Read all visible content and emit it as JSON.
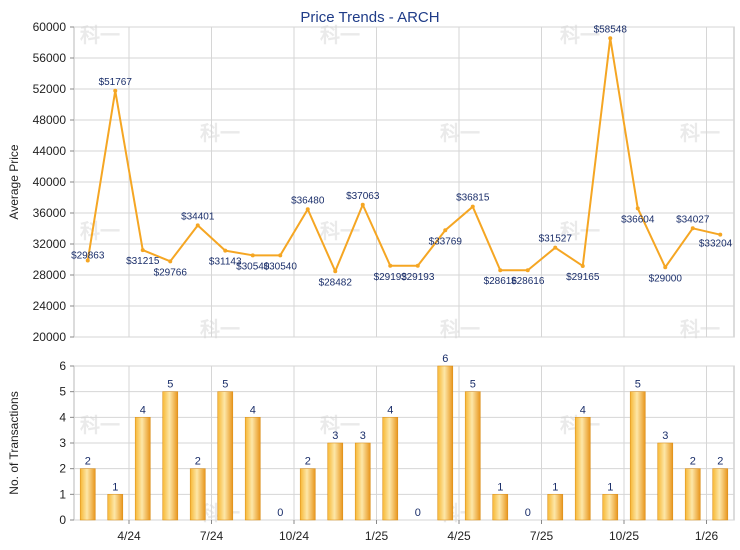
{
  "chart_data": [
    {
      "type": "line",
      "title": "Price Trends - ARCH",
      "ylabel": "Average Price",
      "ylim": [
        20000,
        60000
      ],
      "yticks": [
        20000,
        24000,
        28000,
        32000,
        36000,
        40000,
        44000,
        48000,
        52000,
        56000,
        60000
      ],
      "x_tick_labels": [
        "4/24",
        "7/24",
        "10/24",
        "1/25",
        "4/25",
        "7/25",
        "10/25",
        "1/26"
      ],
      "grid": true,
      "color": "#f5a623",
      "points": [
        {
          "value": 29863,
          "label": "$29863"
        },
        {
          "value": 51767,
          "label": "$51767"
        },
        {
          "value": 31215,
          "label": "$31215"
        },
        {
          "value": 29766,
          "label": "$29766"
        },
        {
          "value": 34401,
          "label": "$34401"
        },
        {
          "value": 31143,
          "label": "$31143"
        },
        {
          "value": 30540,
          "label": "$30540"
        },
        {
          "value": 30540,
          "label": "$30540"
        },
        {
          "value": 36480,
          "label": "$36480"
        },
        {
          "value": 28482,
          "label": "$28482"
        },
        {
          "value": 37063,
          "label": "$37063"
        },
        {
          "value": 29193,
          "label": "$29193"
        },
        {
          "value": 29193,
          "label": "$29193"
        },
        {
          "value": 33769,
          "label": "$33769"
        },
        {
          "value": 36815,
          "label": "$36815"
        },
        {
          "value": 28616,
          "label": "$28616"
        },
        {
          "value": 28616,
          "label": "$28616"
        },
        {
          "value": 31527,
          "label": "$31527"
        },
        {
          "value": 29165,
          "label": "$29165"
        },
        {
          "value": 58548,
          "label": "$58548"
        },
        {
          "value": 36604,
          "label": "$36604"
        },
        {
          "value": 29000,
          "label": "$29000"
        },
        {
          "value": 34027,
          "label": "$34027"
        },
        {
          "value": 33204,
          "label": "$33204"
        }
      ]
    },
    {
      "type": "bar",
      "ylabel": "No. of Transactions",
      "ylim": [
        0,
        6
      ],
      "yticks": [
        0,
        1,
        2,
        3,
        4,
        5,
        6
      ],
      "x_tick_labels": [
        "4/24",
        "7/24",
        "10/24",
        "1/25",
        "4/25",
        "7/25",
        "10/25",
        "1/26"
      ],
      "grid": true,
      "color": "#f5a623",
      "values": [
        2,
        1,
        4,
        5,
        2,
        5,
        4,
        0,
        2,
        3,
        3,
        4,
        0,
        6,
        5,
        1,
        0,
        1,
        4,
        1,
        5,
        3,
        2,
        2
      ]
    }
  ],
  "watermark": "科一"
}
